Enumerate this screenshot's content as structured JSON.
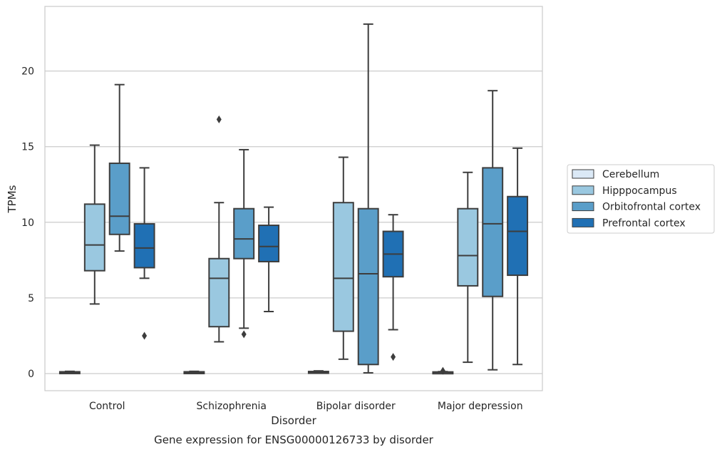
{
  "chart_data": {
    "type": "box",
    "caption": "Gene expression for ENSG00000126733 by disorder",
    "xlabel": "Disorder",
    "ylabel": "TPMs",
    "ylim": [
      -1.1,
      24.3
    ],
    "yticks": [
      0,
      5,
      10,
      15,
      20
    ],
    "grid": "horizontal",
    "legend_position": "right",
    "categories": [
      "Control",
      "Schizophrenia",
      "Bipolar disorder",
      "Major depression"
    ],
    "series": [
      {
        "name": "Cerebellum",
        "color": "#dbe9f6",
        "boxes": [
          {
            "whisker_low": 0.03,
            "q1": 0.05,
            "median": 0.08,
            "q3": 0.12,
            "whisker_high": 0.15,
            "outliers": []
          },
          {
            "whisker_low": 0.03,
            "q1": 0.05,
            "median": 0.08,
            "q3": 0.12,
            "whisker_high": 0.15,
            "outliers": []
          },
          {
            "whisker_low": 0.03,
            "q1": 0.05,
            "median": 0.08,
            "q3": 0.14,
            "whisker_high": 0.18,
            "outliers": []
          },
          {
            "whisker_low": 0.03,
            "q1": 0.05,
            "median": 0.08,
            "q3": 0.11,
            "whisker_high": 0.13,
            "outliers": [
              0.18
            ]
          }
        ]
      },
      {
        "name": "Hipppocampus",
        "color": "#9ac8e0",
        "boxes": [
          {
            "whisker_low": 4.6,
            "q1": 6.8,
            "median": 8.5,
            "q3": 11.2,
            "whisker_high": 15.1,
            "outliers": []
          },
          {
            "whisker_low": 2.1,
            "q1": 3.1,
            "median": 6.3,
            "q3": 7.6,
            "whisker_high": 11.3,
            "outliers": [
              16.8
            ]
          },
          {
            "whisker_low": 0.95,
            "q1": 2.8,
            "median": 6.3,
            "q3": 11.3,
            "whisker_high": 14.3,
            "outliers": []
          },
          {
            "whisker_low": 0.75,
            "q1": 5.8,
            "median": 7.8,
            "q3": 10.9,
            "whisker_high": 13.3,
            "outliers": []
          }
        ]
      },
      {
        "name": "Orbitofrontal cortex",
        "color": "#5a9ec9",
        "boxes": [
          {
            "whisker_low": 8.1,
            "q1": 9.2,
            "median": 10.4,
            "q3": 13.9,
            "whisker_high": 19.1,
            "outliers": []
          },
          {
            "whisker_low": 3.0,
            "q1": 7.6,
            "median": 8.9,
            "q3": 10.9,
            "whisker_high": 14.8,
            "outliers": [
              2.6
            ]
          },
          {
            "whisker_low": 0.05,
            "q1": 0.6,
            "median": 6.6,
            "q3": 10.9,
            "whisker_high": 23.1,
            "outliers": []
          },
          {
            "whisker_low": 0.25,
            "q1": 5.1,
            "median": 9.9,
            "q3": 13.6,
            "whisker_high": 18.7,
            "outliers": []
          }
        ]
      },
      {
        "name": "Prefrontal cortex",
        "color": "#2070b4",
        "boxes": [
          {
            "whisker_low": 6.3,
            "q1": 7.0,
            "median": 8.3,
            "q3": 9.9,
            "whisker_high": 13.6,
            "outliers": [
              2.5
            ]
          },
          {
            "whisker_low": 4.1,
            "q1": 7.4,
            "median": 8.4,
            "q3": 9.8,
            "whisker_high": 11.0,
            "outliers": []
          },
          {
            "whisker_low": 2.9,
            "q1": 6.4,
            "median": 7.9,
            "q3": 9.4,
            "whisker_high": 10.5,
            "outliers": [
              1.1
            ]
          },
          {
            "whisker_low": 0.6,
            "q1": 6.5,
            "median": 9.4,
            "q3": 11.7,
            "whisker_high": 14.9,
            "outliers": []
          }
        ]
      }
    ]
  }
}
